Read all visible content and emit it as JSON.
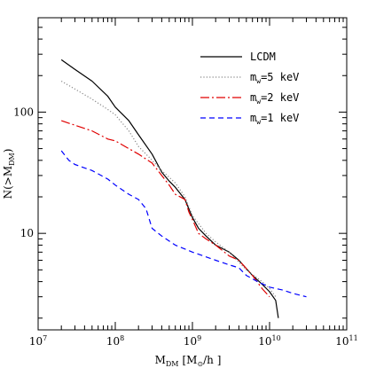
{
  "chart_data": {
    "type": "line",
    "xscale": "log",
    "yscale": "log",
    "xlim": [
      10000000,
      100000000000
    ],
    "ylim": [
      1.6,
      600
    ],
    "xlabel": {
      "main": "M",
      "sub": "DM",
      "bracket_open": "[M",
      "sun": "⊙",
      "rest": "/h ]"
    },
    "ylabel": {
      "pre": "N(>M",
      "sub": "DM",
      "post": ")"
    },
    "x_ticks": [
      {
        "value": 10000000,
        "base": "10",
        "exp": "7"
      },
      {
        "value": 100000000,
        "base": "10",
        "exp": "8"
      },
      {
        "value": 1000000000,
        "base": "10",
        "exp": "9"
      },
      {
        "value": 10000000000,
        "base": "10",
        "exp": "10"
      },
      {
        "value": 100000000000,
        "base": "10",
        "exp": "11"
      }
    ],
    "y_ticks": [
      {
        "value": 10,
        "label": "10"
      },
      {
        "value": 100,
        "label": "100"
      }
    ],
    "legend_position": "top-right",
    "series": [
      {
        "name": "LCDM",
        "name_parts": {
          "main": "LCDM",
          "sub": "",
          "rest": ""
        },
        "color": "#000000",
        "dash": "",
        "points": [
          [
            20000000,
            270
          ],
          [
            30000000,
            225
          ],
          [
            50000000,
            180
          ],
          [
            80000000,
            135
          ],
          [
            100000000,
            110
          ],
          [
            150000000,
            85
          ],
          [
            200000000,
            65
          ],
          [
            300000000,
            45
          ],
          [
            400000000,
            32
          ],
          [
            500000000,
            27
          ],
          [
            600000000,
            24
          ],
          [
            800000000,
            19
          ],
          [
            1000000000,
            13.5
          ],
          [
            1200000000,
            11
          ],
          [
            1500000000,
            9.5
          ],
          [
            2000000000,
            8
          ],
          [
            3000000000,
            7
          ],
          [
            4000000000,
            6
          ],
          [
            6000000000,
            4.5
          ],
          [
            8000000000,
            3.8
          ],
          [
            10000000000,
            3.3
          ],
          [
            12000000000,
            2.8
          ],
          [
            13000000000,
            2
          ]
        ]
      },
      {
        "name": "m_w=5 keV",
        "name_parts": {
          "main": "m",
          "sub": "w",
          "rest": "=5 keV"
        },
        "color": "#888888",
        "dash": "1.2,2.2",
        "points": [
          [
            20000000,
            180
          ],
          [
            30000000,
            155
          ],
          [
            50000000,
            128
          ],
          [
            80000000,
            105
          ],
          [
            100000000,
            95
          ],
          [
            150000000,
            70
          ],
          [
            200000000,
            52
          ],
          [
            300000000,
            40
          ],
          [
            400000000,
            33
          ],
          [
            500000000,
            29
          ],
          [
            600000000,
            26
          ],
          [
            800000000,
            20
          ],
          [
            1000000000,
            14
          ],
          [
            1500000000,
            10
          ],
          [
            2000000000,
            8.5
          ],
          [
            3000000000,
            7
          ],
          [
            5000000000,
            5
          ],
          [
            8000000000,
            4
          ],
          [
            10000000000,
            3.5
          ],
          [
            12000000000,
            3
          ]
        ]
      },
      {
        "name": "m_w=2 keV",
        "name_parts": {
          "main": "m",
          "sub": "w",
          "rest": "=2 keV"
        },
        "color": "#e00000",
        "dash": "10,3,2,3",
        "points": [
          [
            20000000,
            85
          ],
          [
            30000000,
            78
          ],
          [
            50000000,
            70
          ],
          [
            80000000,
            60
          ],
          [
            100000000,
            58
          ],
          [
            150000000,
            50
          ],
          [
            200000000,
            45
          ],
          [
            300000000,
            38
          ],
          [
            400000000,
            30
          ],
          [
            500000000,
            25
          ],
          [
            600000000,
            21
          ],
          [
            800000000,
            19
          ],
          [
            900000000,
            15
          ],
          [
            1000000000,
            13
          ],
          [
            1200000000,
            10
          ],
          [
            1500000000,
            9
          ],
          [
            2000000000,
            8
          ],
          [
            3000000000,
            6.5
          ],
          [
            4000000000,
            6
          ],
          [
            6000000000,
            4.5
          ],
          [
            8000000000,
            3.5
          ],
          [
            10000000000,
            3
          ]
        ]
      },
      {
        "name": "m_w=1 keV",
        "name_parts": {
          "main": "m",
          "sub": "w",
          "rest": "=1 keV"
        },
        "color": "#0000ff",
        "dash": "6,4",
        "points": [
          [
            20000000,
            48
          ],
          [
            25000000,
            40
          ],
          [
            30000000,
            37
          ],
          [
            50000000,
            33
          ],
          [
            80000000,
            28
          ],
          [
            100000000,
            25
          ],
          [
            150000000,
            21
          ],
          [
            200000000,
            19
          ],
          [
            250000000,
            16
          ],
          [
            300000000,
            11
          ],
          [
            400000000,
            9.5
          ],
          [
            600000000,
            8
          ],
          [
            1000000000,
            7
          ],
          [
            2000000000,
            6
          ],
          [
            3000000000,
            5.5
          ],
          [
            4000000000,
            5.2
          ],
          [
            5000000000,
            4.5
          ],
          [
            7000000000,
            4
          ],
          [
            10000000000,
            3.6
          ],
          [
            15000000000,
            3.4
          ],
          [
            20000000000,
            3.2
          ],
          [
            30000000000,
            3
          ]
        ]
      }
    ]
  }
}
